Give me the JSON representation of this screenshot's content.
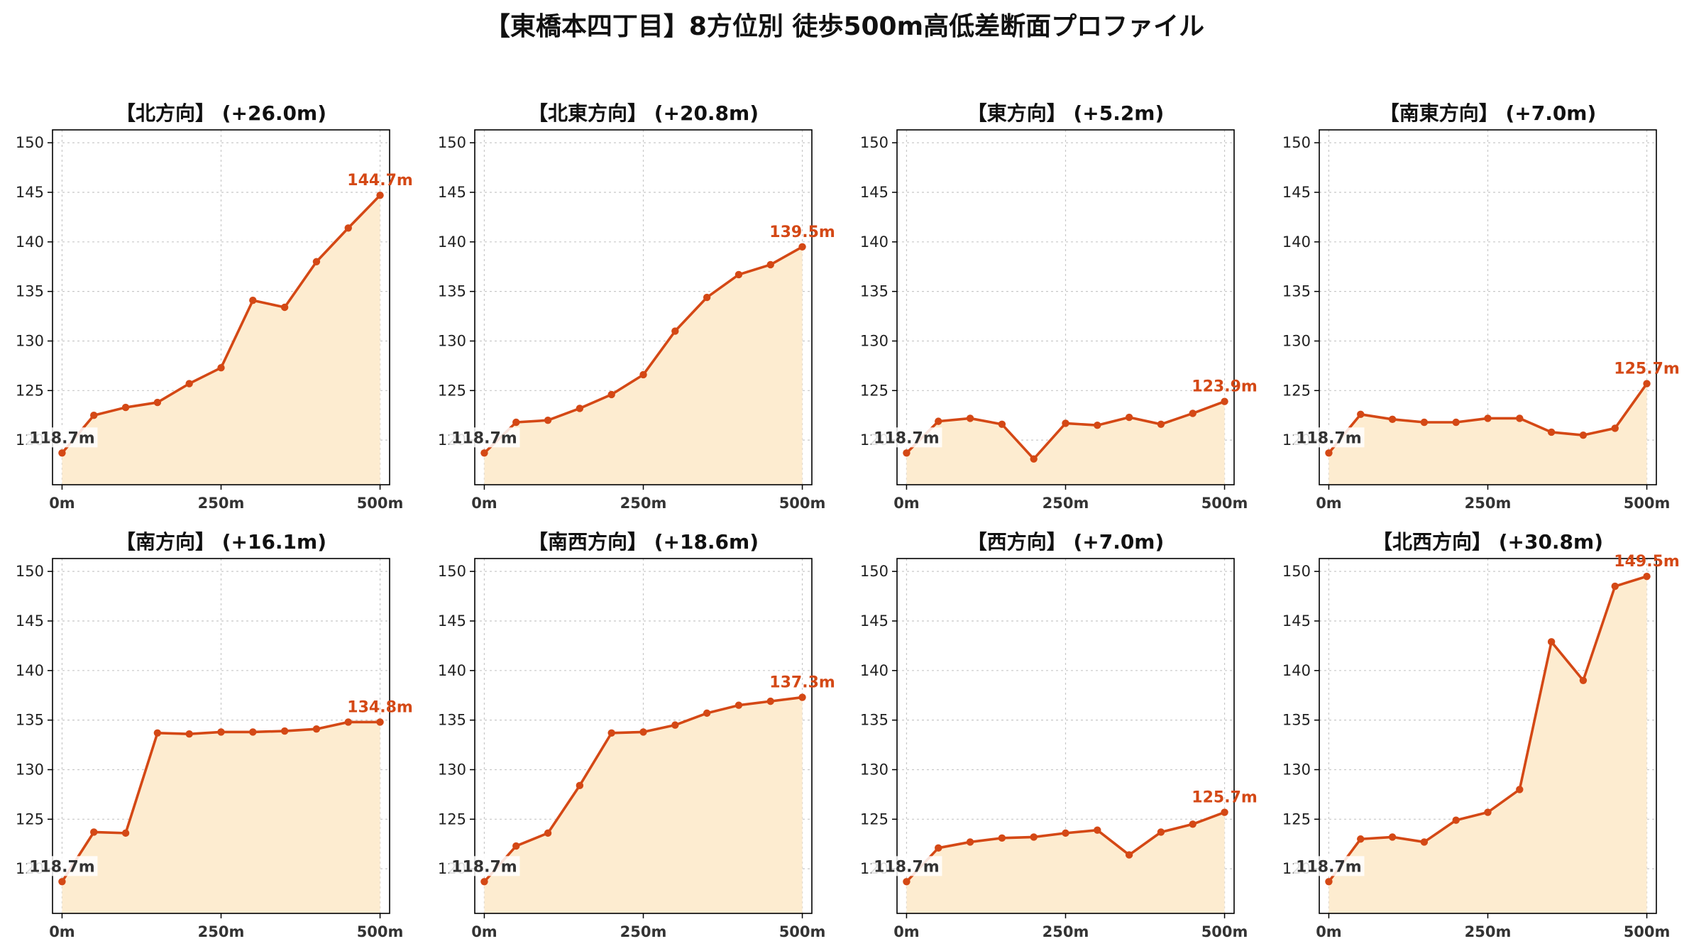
{
  "figure": {
    "title": "【東橋本四丁目】8方位別 徒歩500m高低差断面プロファイル"
  },
  "colors": {
    "line": "#d44815",
    "fill": "#fdecd0",
    "start_label": "#333333",
    "grid": "#c8c8c8",
    "axis": "#000000"
  },
  "chart_data": [
    {
      "type": "area",
      "title": "【北方向】 (+26.0m)",
      "x": [
        0,
        50,
        100,
        150,
        200,
        250,
        300,
        350,
        400,
        450,
        500
      ],
      "y": [
        118.7,
        122.5,
        123.3,
        123.8,
        125.7,
        127.3,
        134.1,
        133.4,
        138.0,
        141.4,
        144.7
      ],
      "xticks": [
        "0m",
        "250m",
        "500m"
      ],
      "yticks": [
        120,
        125,
        130,
        135,
        140,
        145,
        150
      ],
      "ylim": [
        115.5,
        151.3
      ],
      "start_label": "118.7m",
      "end_label": "144.7m",
      "grid": true
    },
    {
      "type": "area",
      "title": "【北東方向】 (+20.8m)",
      "x": [
        0,
        50,
        100,
        150,
        200,
        250,
        300,
        350,
        400,
        450,
        500
      ],
      "y": [
        118.7,
        121.8,
        122.0,
        123.2,
        124.6,
        126.6,
        131.0,
        134.4,
        136.7,
        137.7,
        139.5
      ],
      "xticks": [
        "0m",
        "250m",
        "500m"
      ],
      "yticks": [
        120,
        125,
        130,
        135,
        140,
        145,
        150
      ],
      "ylim": [
        115.5,
        151.3
      ],
      "start_label": "118.7m",
      "end_label": "139.5m",
      "grid": true
    },
    {
      "type": "area",
      "title": "【東方向】 (+5.2m)",
      "x": [
        0,
        50,
        100,
        150,
        200,
        250,
        300,
        350,
        400,
        450,
        500
      ],
      "y": [
        118.7,
        121.9,
        122.2,
        121.6,
        118.1,
        121.7,
        121.5,
        122.3,
        121.6,
        122.7,
        123.9
      ],
      "xticks": [
        "0m",
        "250m",
        "500m"
      ],
      "yticks": [
        120,
        125,
        130,
        135,
        140,
        145,
        150
      ],
      "ylim": [
        115.5,
        151.3
      ],
      "start_label": "118.7m",
      "end_label": "123.9m",
      "grid": true
    },
    {
      "type": "area",
      "title": "【南東方向】 (+7.0m)",
      "x": [
        0,
        50,
        100,
        150,
        200,
        250,
        300,
        350,
        400,
        450,
        500
      ],
      "y": [
        118.7,
        122.6,
        122.1,
        121.8,
        121.8,
        122.2,
        122.2,
        120.8,
        120.5,
        121.2,
        125.7
      ],
      "xticks": [
        "0m",
        "250m",
        "500m"
      ],
      "yticks": [
        120,
        125,
        130,
        135,
        140,
        145,
        150
      ],
      "ylim": [
        115.5,
        151.3
      ],
      "start_label": "118.7m",
      "end_label": "125.7m",
      "grid": true
    },
    {
      "type": "area",
      "title": "【南方向】 (+16.1m)",
      "x": [
        0,
        50,
        100,
        150,
        200,
        250,
        300,
        350,
        400,
        450,
        500
      ],
      "y": [
        118.7,
        123.7,
        123.6,
        133.7,
        133.6,
        133.8,
        133.8,
        133.9,
        134.1,
        134.8,
        134.8
      ],
      "xticks": [
        "0m",
        "250m",
        "500m"
      ],
      "yticks": [
        120,
        125,
        130,
        135,
        140,
        145,
        150
      ],
      "ylim": [
        115.5,
        151.3
      ],
      "start_label": "118.7m",
      "end_label": "134.8m",
      "grid": true
    },
    {
      "type": "area",
      "title": "【南西方向】 (+18.6m)",
      "x": [
        0,
        50,
        100,
        150,
        200,
        250,
        300,
        350,
        400,
        450,
        500
      ],
      "y": [
        118.7,
        122.3,
        123.6,
        128.4,
        133.7,
        133.8,
        134.5,
        135.7,
        136.5,
        136.9,
        137.3
      ],
      "xticks": [
        "0m",
        "250m",
        "500m"
      ],
      "yticks": [
        120,
        125,
        130,
        135,
        140,
        145,
        150
      ],
      "ylim": [
        115.5,
        151.3
      ],
      "start_label": "118.7m",
      "end_label": "137.3m",
      "grid": true
    },
    {
      "type": "area",
      "title": "【西方向】 (+7.0m)",
      "x": [
        0,
        50,
        100,
        150,
        200,
        250,
        300,
        350,
        400,
        450,
        500
      ],
      "y": [
        118.7,
        122.1,
        122.7,
        123.1,
        123.2,
        123.6,
        123.9,
        121.4,
        123.7,
        124.5,
        125.7
      ],
      "xticks": [
        "0m",
        "250m",
        "500m"
      ],
      "yticks": [
        120,
        125,
        130,
        135,
        140,
        145,
        150
      ],
      "ylim": [
        115.5,
        151.3
      ],
      "start_label": "118.7m",
      "end_label": "125.7m",
      "grid": true
    },
    {
      "type": "area",
      "title": "【北西方向】 (+30.8m)",
      "x": [
        0,
        50,
        100,
        150,
        200,
        250,
        300,
        350,
        400,
        450,
        500
      ],
      "y": [
        118.7,
        123.0,
        123.2,
        122.7,
        124.9,
        125.7,
        128.0,
        142.9,
        139.0,
        148.5,
        149.5
      ],
      "xticks": [
        "0m",
        "250m",
        "500m"
      ],
      "yticks": [
        120,
        125,
        130,
        135,
        140,
        145,
        150
      ],
      "ylim": [
        115.5,
        151.3
      ],
      "start_label": "118.7m",
      "end_label": "149.5m",
      "grid": true
    }
  ]
}
